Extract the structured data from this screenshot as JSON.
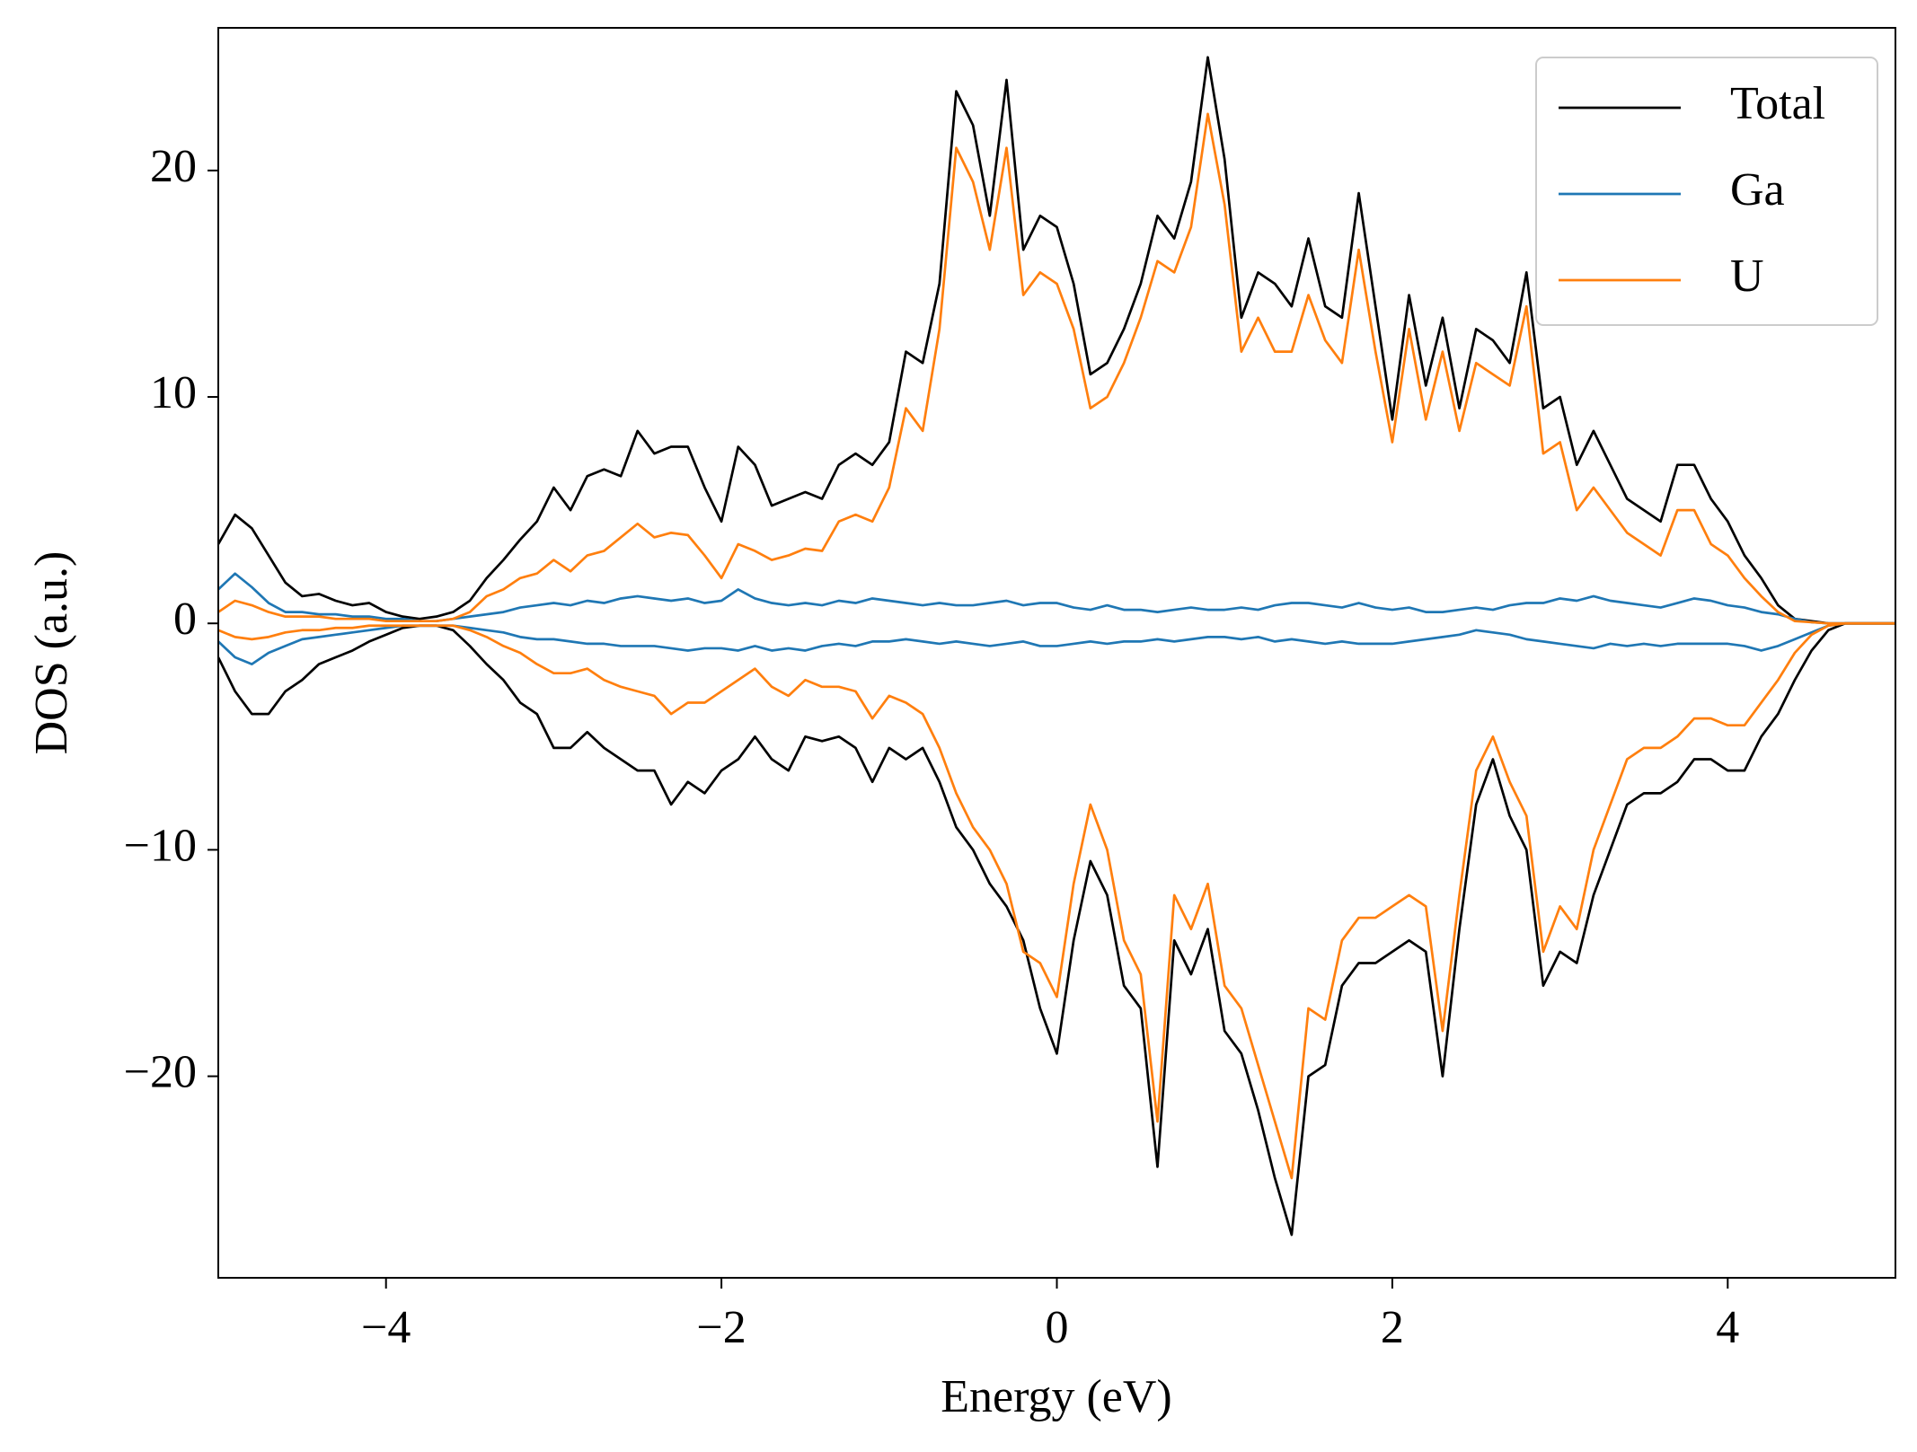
{
  "chart_data": {
    "type": "line",
    "xlabel": "Energy (eV)",
    "ylabel": "DOS (a.u.)",
    "x": [
      -5,
      -4.9,
      -4.8,
      -4.7,
      -4.6,
      -4.5,
      -4.4,
      -4.3,
      -4.2,
      -4.1,
      -4,
      -3.9,
      -3.8,
      -3.7,
      -3.6,
      -3.5,
      -3.4,
      -3.3,
      -3.2,
      -3.1,
      -3,
      -2.9,
      -2.8,
      -2.7,
      -2.6,
      -2.5,
      -2.4,
      -2.3,
      -2.2,
      -2.1,
      -2,
      -1.9,
      -1.8,
      -1.7,
      -1.6,
      -1.5,
      -1.4,
      -1.3,
      -1.2,
      -1.1,
      -1,
      -0.9,
      -0.8,
      -0.7,
      -0.6,
      -0.5,
      -0.4,
      -0.3,
      -0.2,
      -0.1,
      0,
      0.1,
      0.2,
      0.3,
      0.4,
      0.5,
      0.6,
      0.7,
      0.8,
      0.9,
      1,
      1.1,
      1.2,
      1.3,
      1.4,
      1.5,
      1.6,
      1.7,
      1.8,
      1.9,
      2,
      2.1,
      2.2,
      2.3,
      2.4,
      2.5,
      2.6,
      2.7,
      2.8,
      2.9,
      3,
      3.1,
      3.2,
      3.3,
      3.4,
      3.5,
      3.6,
      3.7,
      3.8,
      3.9,
      4,
      4.1,
      4.2,
      4.3,
      4.4,
      4.5,
      4.6,
      4.7,
      4.8,
      4.9,
      5
    ],
    "series": [
      {
        "name": "Total",
        "color": "#000000",
        "values": [
          3.5,
          4.8,
          4.2,
          3,
          1.8,
          1.2,
          1.3,
          1,
          0.8,
          0.9,
          0.5,
          0.3,
          0.2,
          0.3,
          0.5,
          1,
          2,
          2.8,
          3.7,
          4.5,
          6,
          5,
          6.5,
          6.8,
          6.5,
          8.5,
          7.5,
          7.8,
          7.8,
          6,
          4.5,
          7.8,
          7,
          5.2,
          5.5,
          5.8,
          5.5,
          7,
          7.5,
          7,
          8,
          12,
          11.5,
          15,
          23.5,
          22,
          18,
          24,
          16.5,
          18,
          17.5,
          15,
          11,
          11.5,
          13,
          15,
          18,
          17,
          19.5,
          25,
          20.5,
          13.5,
          15.5,
          15,
          14,
          17,
          14,
          13.5,
          19,
          14,
          9,
          14.5,
          10.5,
          13.5,
          9.5,
          13,
          12.5,
          11.5,
          15.5,
          9.5,
          10,
          7,
          8.5,
          7,
          5.5,
          5,
          4.5,
          7,
          7,
          5.5,
          4.5,
          3,
          2,
          0.8,
          0.2,
          0.1,
          0,
          0,
          0,
          0,
          0
        ],
        "values_down": [
          -1.5,
          -3,
          -4,
          -4,
          -3,
          -2.5,
          -1.8,
          -1.5,
          -1.2,
          -0.8,
          -0.5,
          -0.2,
          -0.1,
          -0.1,
          -0.3,
          -1,
          -1.8,
          -2.5,
          -3.5,
          -4,
          -5.5,
          -5.5,
          -4.8,
          -5.5,
          -6,
          -6.5,
          -6.5,
          -8,
          -7,
          -7.5,
          -6.5,
          -6,
          -5,
          -6,
          -6.5,
          -5,
          -5.2,
          -5,
          -5.5,
          -7,
          -5.5,
          -6,
          -5.5,
          -7,
          -9,
          -10,
          -11.5,
          -12.5,
          -14,
          -17,
          -19,
          -14,
          -10.5,
          -12,
          -16,
          -17,
          -24,
          -14,
          -15.5,
          -13.5,
          -18,
          -19,
          -21.5,
          -24.5,
          -27,
          -20,
          -19.5,
          -16,
          -15,
          -15,
          -14.5,
          -14,
          -14.5,
          -20,
          -13.5,
          -8,
          -6,
          -8.5,
          -10,
          -16,
          -14.5,
          -15,
          -12,
          -10,
          -8,
          -7.5,
          -7.5,
          -7,
          -6,
          -6,
          -6.5,
          -6.5,
          -5,
          -4,
          -2.5,
          -1.2,
          -0.3,
          0,
          0,
          0,
          0
        ]
      },
      {
        "name": "Ga",
        "color": "#1f77b4",
        "values": [
          1.5,
          2.2,
          1.6,
          0.9,
          0.5,
          0.5,
          0.4,
          0.4,
          0.3,
          0.3,
          0.2,
          0.2,
          0.1,
          0.1,
          0.2,
          0.3,
          0.4,
          0.5,
          0.7,
          0.8,
          0.9,
          0.8,
          1,
          0.9,
          1.1,
          1.2,
          1.1,
          1,
          1.1,
          0.9,
          1,
          1.5,
          1.1,
          0.9,
          0.8,
          0.9,
          0.8,
          1,
          0.9,
          1.1,
          1,
          0.9,
          0.8,
          0.9,
          0.8,
          0.8,
          0.9,
          1,
          0.8,
          0.9,
          0.9,
          0.7,
          0.6,
          0.8,
          0.6,
          0.6,
          0.5,
          0.6,
          0.7,
          0.6,
          0.6,
          0.7,
          0.6,
          0.8,
          0.9,
          0.9,
          0.8,
          0.7,
          0.9,
          0.7,
          0.6,
          0.7,
          0.5,
          0.5,
          0.6,
          0.7,
          0.6,
          0.8,
          0.9,
          0.9,
          1.1,
          1,
          1.2,
          1,
          0.9,
          0.8,
          0.7,
          0.9,
          1.1,
          1,
          0.8,
          0.7,
          0.5,
          0.4,
          0.2,
          0.05,
          0,
          0,
          0,
          0,
          0
        ],
        "values_down": [
          -0.8,
          -1.5,
          -1.8,
          -1.3,
          -1,
          -0.7,
          -0.6,
          -0.5,
          -0.4,
          -0.3,
          -0.2,
          -0.1,
          -0.1,
          -0.1,
          -0.1,
          -0.2,
          -0.3,
          -0.4,
          -0.6,
          -0.7,
          -0.7,
          -0.8,
          -0.9,
          -0.9,
          -1,
          -1,
          -1,
          -1.1,
          -1.2,
          -1.1,
          -1.1,
          -1.2,
          -1,
          -1.2,
          -1.1,
          -1.2,
          -1,
          -0.9,
          -1,
          -0.8,
          -0.8,
          -0.7,
          -0.8,
          -0.9,
          -0.8,
          -0.9,
          -1,
          -0.9,
          -0.8,
          -1,
          -1,
          -0.9,
          -0.8,
          -0.9,
          -0.8,
          -0.8,
          -0.7,
          -0.8,
          -0.7,
          -0.6,
          -0.6,
          -0.7,
          -0.6,
          -0.8,
          -0.7,
          -0.8,
          -0.9,
          -0.8,
          -0.9,
          -0.9,
          -0.9,
          -0.8,
          -0.7,
          -0.6,
          -0.5,
          -0.3,
          -0.4,
          -0.5,
          -0.7,
          -0.8,
          -0.9,
          -1,
          -1.1,
          -0.9,
          -1,
          -0.9,
          -1,
          -0.9,
          -0.9,
          -0.9,
          -0.9,
          -1,
          -1.2,
          -1,
          -0.7,
          -0.4,
          -0.1,
          0,
          0,
          0,
          0
        ]
      },
      {
        "name": "U",
        "color": "#ff7f0e",
        "values": [
          0.5,
          1,
          0.8,
          0.5,
          0.3,
          0.3,
          0.3,
          0.2,
          0.2,
          0.2,
          0.1,
          0.1,
          0.1,
          0.1,
          0.2,
          0.5,
          1.2,
          1.5,
          2,
          2.2,
          2.8,
          2.3,
          3,
          3.2,
          3.8,
          4.4,
          3.8,
          4,
          3.9,
          3,
          2,
          3.5,
          3.2,
          2.8,
          3,
          3.3,
          3.2,
          4.5,
          4.8,
          4.5,
          6,
          9.5,
          8.5,
          13,
          21,
          19.5,
          16.5,
          21,
          14.5,
          15.5,
          15,
          13,
          9.5,
          10,
          11.5,
          13.5,
          16,
          15.5,
          17.5,
          22.5,
          18.5,
          12,
          13.5,
          12,
          12,
          14.5,
          12.5,
          11.5,
          16.5,
          12,
          8,
          13,
          9,
          12,
          8.5,
          11.5,
          11,
          10.5,
          14,
          7.5,
          8,
          5,
          6,
          5,
          4,
          3.5,
          3,
          5,
          5,
          3.5,
          3,
          2,
          1.2,
          0.5,
          0.1,
          0.05,
          0,
          0,
          0,
          0,
          0
        ],
        "values_down": [
          -0.3,
          -0.6,
          -0.7,
          -0.6,
          -0.4,
          -0.3,
          -0.3,
          -0.2,
          -0.2,
          -0.1,
          -0.1,
          -0.1,
          -0.1,
          -0.1,
          -0.1,
          -0.3,
          -0.6,
          -1,
          -1.3,
          -1.8,
          -2.2,
          -2.2,
          -2,
          -2.5,
          -2.8,
          -3,
          -3.2,
          -4,
          -3.5,
          -3.5,
          -3,
          -2.5,
          -2,
          -2.8,
          -3.2,
          -2.5,
          -2.8,
          -2.8,
          -3,
          -4.2,
          -3.2,
          -3.5,
          -4,
          -5.5,
          -7.5,
          -9,
          -10,
          -11.5,
          -14.5,
          -15,
          -16.5,
          -11.5,
          -8,
          -10,
          -14,
          -15.5,
          -22,
          -12,
          -13.5,
          -11.5,
          -16,
          -17,
          -19.5,
          -22,
          -24.5,
          -17,
          -17.5,
          -14,
          -13,
          -13,
          -12.5,
          -12,
          -12.5,
          -18,
          -12,
          -6.5,
          -5,
          -7,
          -8.5,
          -14.5,
          -12.5,
          -13.5,
          -10,
          -8,
          -6,
          -5.5,
          -5.5,
          -5,
          -4.2,
          -4.2,
          -4.5,
          -4.5,
          -3.5,
          -2.5,
          -1.3,
          -0.5,
          -0.1,
          0,
          0,
          0,
          0
        ]
      }
    ],
    "xlim": [
      -5,
      5
    ],
    "xticks": [
      {
        "value": -4,
        "label": "−4"
      },
      {
        "value": -2,
        "label": "−2"
      },
      0,
      2,
      4
    ],
    "ylim": [
      -28.9,
      26.3
    ],
    "yticks": [
      {
        "value": -20,
        "label": "−20"
      },
      {
        "value": -10,
        "label": "−10"
      },
      0,
      10,
      20
    ],
    "grid": false,
    "legend": "upper right"
  }
}
